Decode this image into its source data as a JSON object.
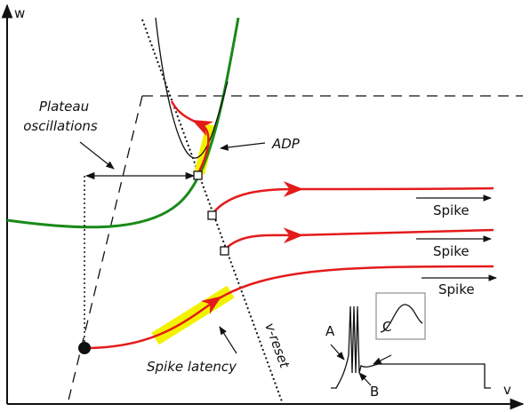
{
  "axes": {
    "y_label": "w",
    "x_label": "v"
  },
  "labels": {
    "plateau_line1": "Plateau",
    "plateau_line2": "oscillations",
    "adp": "ADP",
    "spike_latency": "Spike latency",
    "v_reset": "v-reset"
  },
  "spikes": [
    "Spike",
    "Spike",
    "Spike"
  ],
  "inset": {
    "a": "A",
    "b": "B",
    "c": "C"
  }
}
